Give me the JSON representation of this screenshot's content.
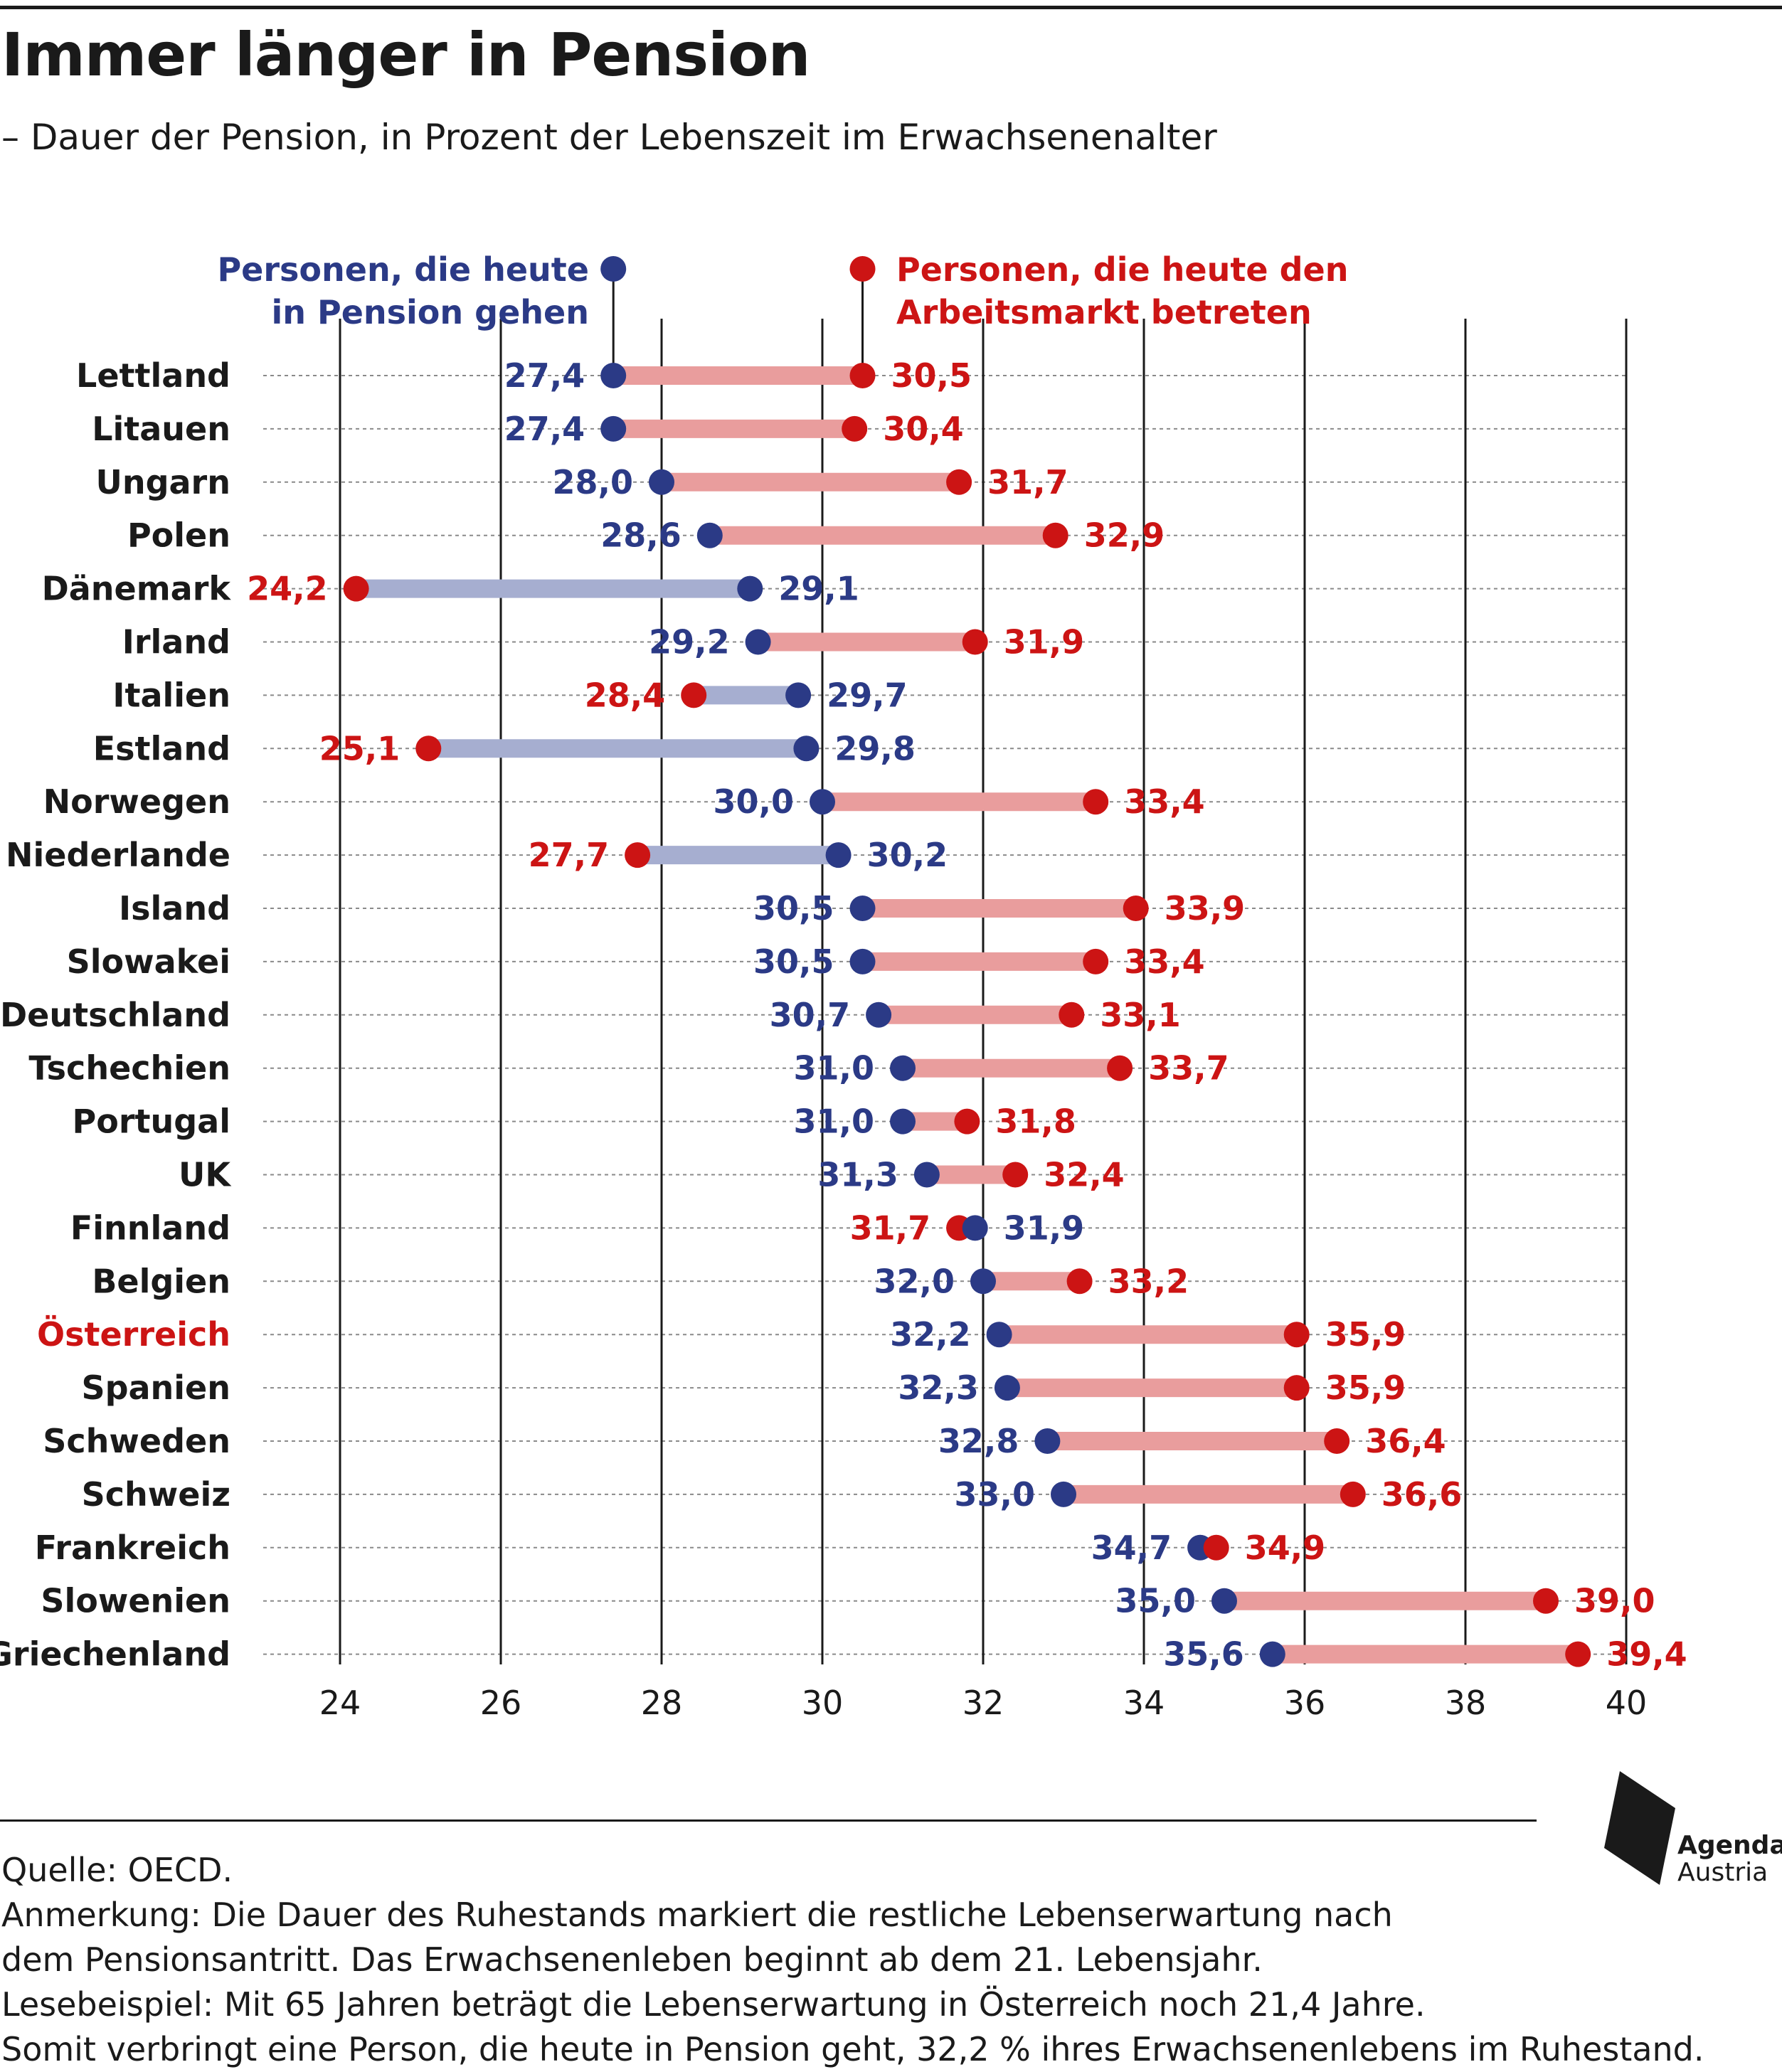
{
  "title": "Immer länger in Pension",
  "subtitle": "– Dauer der Pension, in Prozent der Lebenszeit im Erwachsenenalter",
  "colors": {
    "blue": "#2b3a86",
    "red": "#cc1414",
    "red_bar": "#e99d9d",
    "blue_bar": "#a6aed0",
    "highlight": "#cc1414"
  },
  "chart_data": {
    "type": "dumbbell",
    "xlim": [
      24,
      40
    ],
    "xticks": [
      "24",
      "26",
      "28",
      "30",
      "32",
      "34",
      "36",
      "38",
      "40"
    ],
    "grid": "vertical",
    "legend": "top",
    "series": [
      {
        "name": "Personen, die heute in Pension gehen",
        "color": "#2b3a86"
      },
      {
        "name": "Personen, die heute den Arbeitsmarkt betreten",
        "color": "#cc1414"
      }
    ],
    "rows": [
      {
        "country": "Lettland",
        "blue": 27.4,
        "red": 30.5,
        "blue_label": "27,4",
        "red_label": "30,5"
      },
      {
        "country": "Litauen",
        "blue": 27.4,
        "red": 30.4,
        "blue_label": "27,4",
        "red_label": "30,4"
      },
      {
        "country": "Ungarn",
        "blue": 28.0,
        "red": 31.7,
        "blue_label": "28,0",
        "red_label": "31,7"
      },
      {
        "country": "Polen",
        "blue": 28.6,
        "red": 32.9,
        "blue_label": "28,6",
        "red_label": "32,9"
      },
      {
        "country": "Dänemark",
        "blue": 29.1,
        "red": 24.2,
        "blue_label": "29,1",
        "red_label": "24,2"
      },
      {
        "country": "Irland",
        "blue": 29.2,
        "red": 31.9,
        "blue_label": "29,2",
        "red_label": "31,9"
      },
      {
        "country": "Italien",
        "blue": 29.7,
        "red": 28.4,
        "blue_label": "29,7",
        "red_label": "28,4"
      },
      {
        "country": "Estland",
        "blue": 29.8,
        "red": 25.1,
        "blue_label": "29,8",
        "red_label": "25,1"
      },
      {
        "country": "Norwegen",
        "blue": 30.0,
        "red": 33.4,
        "blue_label": "30,0",
        "red_label": "33,4"
      },
      {
        "country": "Niederlande",
        "blue": 30.2,
        "red": 27.7,
        "blue_label": "30,2",
        "red_label": "27,7"
      },
      {
        "country": "Island",
        "blue": 30.5,
        "red": 33.9,
        "blue_label": "30,5",
        "red_label": "33,9"
      },
      {
        "country": "Slowakei",
        "blue": 30.5,
        "red": 33.4,
        "blue_label": "30,5",
        "red_label": "33,4"
      },
      {
        "country": "Deutschland",
        "blue": 30.7,
        "red": 33.1,
        "blue_label": "30,7",
        "red_label": "33,1"
      },
      {
        "country": "Tschechien",
        "blue": 31.0,
        "red": 33.7,
        "blue_label": "31,0",
        "red_label": "33,7"
      },
      {
        "country": "Portugal",
        "blue": 31.0,
        "red": 31.8,
        "blue_label": "31,0",
        "red_label": "31,8"
      },
      {
        "country": "UK",
        "blue": 31.3,
        "red": 32.4,
        "blue_label": "31,3",
        "red_label": "32,4"
      },
      {
        "country": "Finnland",
        "blue": 31.9,
        "red": 31.7,
        "blue_label": "31,9",
        "red_label": "31,7"
      },
      {
        "country": "Belgien",
        "blue": 32.0,
        "red": 33.2,
        "blue_label": "32,0",
        "red_label": "33,2"
      },
      {
        "country": "Österreich",
        "blue": 32.2,
        "red": 35.9,
        "blue_label": "32,2",
        "red_label": "35,9",
        "highlight": true
      },
      {
        "country": "Spanien",
        "blue": 32.3,
        "red": 35.9,
        "blue_label": "32,3",
        "red_label": "35,9"
      },
      {
        "country": "Schweden",
        "blue": 32.8,
        "red": 36.4,
        "blue_label": "32,8",
        "red_label": "36,4"
      },
      {
        "country": "Schweiz",
        "blue": 33.0,
        "red": 36.6,
        "blue_label": "33,0",
        "red_label": "36,6"
      },
      {
        "country": "Frankreich",
        "blue": 34.7,
        "red": 34.9,
        "blue_label": "34,7",
        "red_label": "34,9"
      },
      {
        "country": "Slowenien",
        "blue": 35.0,
        "red": 39.0,
        "blue_label": "35,0",
        "red_label": "39,0"
      },
      {
        "country": "Griechenland",
        "blue": 35.6,
        "red": 39.4,
        "blue_label": "35,6",
        "red_label": "39,4"
      }
    ]
  },
  "legend": {
    "blue_line1": "Personen, die heute",
    "blue_line2": "in Pension gehen",
    "red_line1": "Personen, die heute den",
    "red_line2": "Arbeitsmarkt betreten"
  },
  "notes": {
    "source": "Quelle: OECD.",
    "note1": "Anmerkung: Die Dauer des Ruhestands markiert die restliche Lebenserwartung nach",
    "note2": "dem Pensionsantritt. Das Erwachsenenleben beginnt ab dem 21. Lebensjahr.",
    "note3": "Lesebeispiel: Mit 65 Jahren beträgt die Lebenserwartung in Österreich noch 21,4 Jahre.",
    "note4": "Somit verbringt eine Person, die heute in Pension geht, 32,2 % ihres Erwachsenenlebens im Ruhestand."
  },
  "logo": {
    "line1": "Agenda",
    "line2": "Austria"
  }
}
